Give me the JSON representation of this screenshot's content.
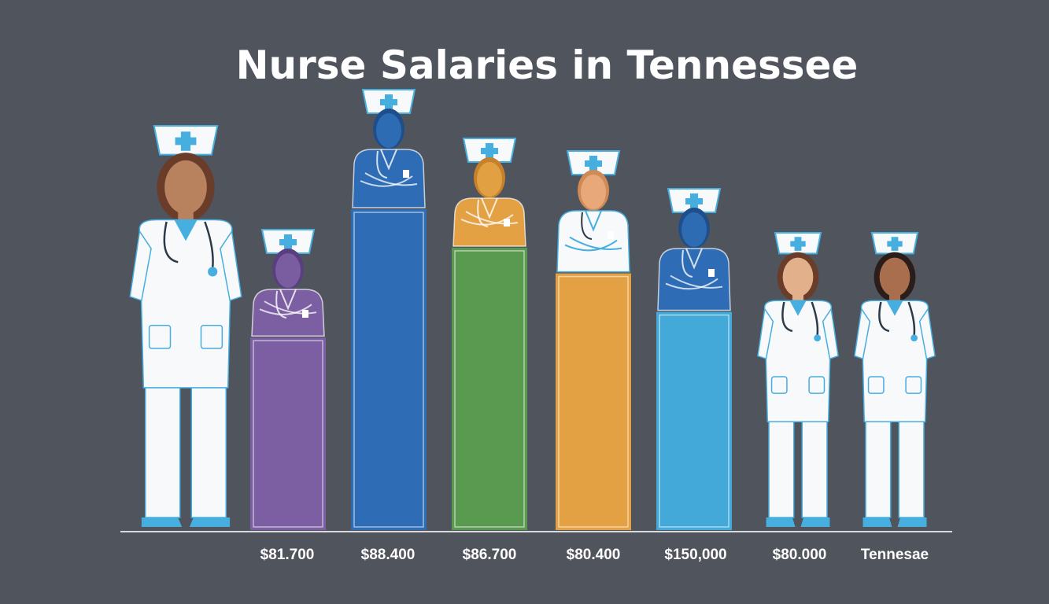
{
  "chart_data": {
    "type": "bar",
    "title": "Nurse Salaries in Tennessee",
    "xlabel": "",
    "ylabel": "",
    "categories": [
      "$81.700",
      "$88.400",
      "$86.700",
      "$80.400",
      "$150,000",
      "$80.000",
      "Tennesae"
    ],
    "values": [
      0.6,
      1.0,
      0.88,
      0.8,
      0.68,
      0,
      0
    ],
    "bar_colors": [
      "#7c5fa2",
      "#2e6db5",
      "#5a9a50",
      "#e3a143",
      "#43a9d8"
    ],
    "ylim": [
      0,
      1
    ],
    "grid": false,
    "legend": "none"
  },
  "colors": {
    "background": "#4f545d",
    "title": "#ffffff",
    "axis": "#d8dadd",
    "uniform": "#f7f9fb",
    "uniform_trim": "#47aee0",
    "cap_cross": "#47aee0",
    "shoes": "#47aee0"
  },
  "figures": [
    {
      "icon": "nurse-standing-icon",
      "skin": "#b9825f",
      "hair": "#6a3d2a"
    },
    {
      "icon": "nurse-purple-icon",
      "skin": "#7c5fa2",
      "hair": "#5a3f80"
    },
    {
      "icon": "nurse-blue-icon",
      "skin": "#2e6db5",
      "hair": "#1f4f8a"
    },
    {
      "icon": "nurse-orange-icon",
      "skin": "#e3a143",
      "hair": "#c7812b"
    },
    {
      "icon": "nurse-white-coat-icon",
      "skin": "#e9aa7c",
      "hair": "#d08a55"
    },
    {
      "icon": "nurse-lightblue-icon",
      "skin": "#2e6db5",
      "hair": "#1f4f8a"
    },
    {
      "icon": "nurse-standing-icon",
      "skin": "#e3b08c",
      "hair": "#6a3d2a"
    },
    {
      "icon": "nurse-standing-icon",
      "skin": "#a86e4e",
      "hair": "#2a1d1a"
    }
  ]
}
